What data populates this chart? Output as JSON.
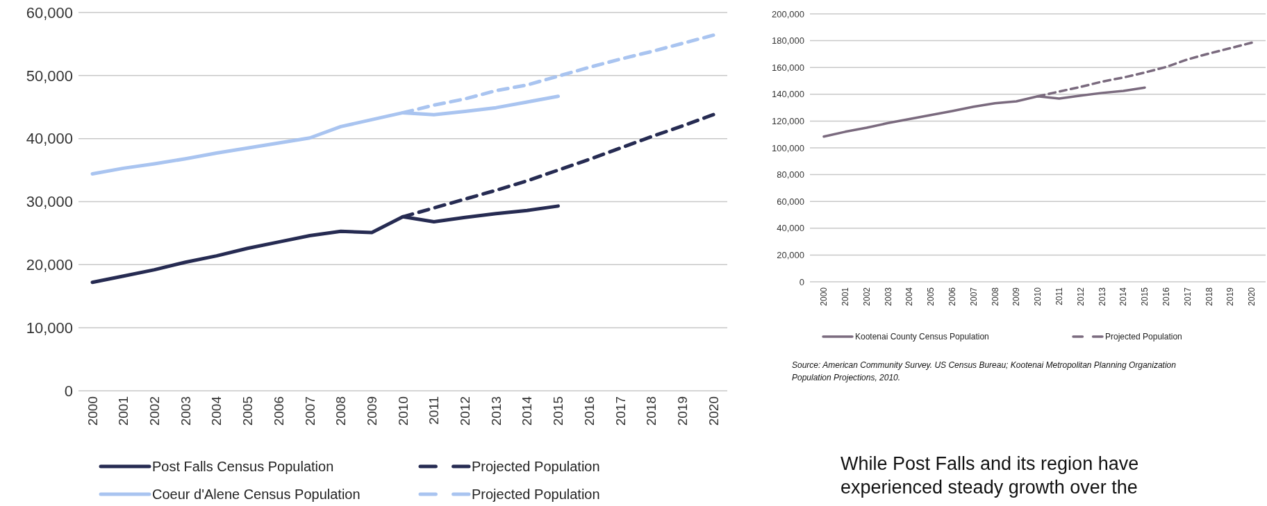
{
  "chart_data": [
    {
      "type": "line",
      "categories": [
        "2000",
        "2001",
        "2002",
        "2003",
        "2004",
        "2005",
        "2006",
        "2007",
        "2008",
        "2009",
        "2010",
        "2011",
        "2012",
        "2013",
        "2014",
        "2015",
        "2016",
        "2017",
        "2018",
        "2019",
        "2020"
      ],
      "ylim": [
        0,
        60000
      ],
      "yticks": [
        {
          "value": 0,
          "label": "0"
        },
        {
          "value": 10000,
          "label": "10,000"
        },
        {
          "value": 20000,
          "label": "20,000"
        },
        {
          "value": 30000,
          "label": "30,000"
        },
        {
          "value": 40000,
          "label": "40,000"
        },
        {
          "value": 50000,
          "label": "50,000"
        },
        {
          "value": 60000,
          "label": "60,000"
        }
      ],
      "grid": "y",
      "legend": "bottom",
      "marker": "none",
      "series": [
        {
          "name": "Post Falls Census Population",
          "color": "#262b52",
          "line_style": "solid",
          "values": [
            17200,
            18200,
            19200,
            20400,
            21400,
            22600,
            23600,
            24600,
            25300,
            25100,
            27600,
            26800,
            27500,
            28100,
            28600,
            29300,
            null,
            null,
            null,
            null,
            null
          ]
        },
        {
          "name": "Projected Population",
          "color": "#262b52",
          "line_style": "dashed",
          "values": [
            null,
            null,
            null,
            null,
            null,
            null,
            null,
            null,
            null,
            null,
            27600,
            29000,
            30400,
            31800,
            33300,
            35000,
            36700,
            38500,
            40300,
            42000,
            43800
          ]
        },
        {
          "name": "Coeur d'Alene Census Population",
          "color": "#a9c4f0",
          "line_style": "solid",
          "values": [
            34400,
            35300,
            36000,
            36800,
            37700,
            38500,
            39300,
            40100,
            41900,
            43000,
            44100,
            43800,
            44300,
            44900,
            45800,
            46700,
            null,
            null,
            null,
            null,
            null
          ]
        },
        {
          "name": "Projected Population",
          "color": "#a9c4f0",
          "line_style": "dashed",
          "values": [
            null,
            null,
            null,
            null,
            null,
            null,
            null,
            null,
            null,
            null,
            44100,
            45300,
            46300,
            47600,
            48500,
            49900,
            51300,
            52600,
            53800,
            55100,
            56400
          ]
        }
      ]
    },
    {
      "type": "line",
      "categories": [
        "2000",
        "2001",
        "2002",
        "2003",
        "2004",
        "2005",
        "2006",
        "2007",
        "2008",
        "2009",
        "2010",
        "2011",
        "2012",
        "2013",
        "2014",
        "2015",
        "2016",
        "2017",
        "2018",
        "2019",
        "2020"
      ],
      "ylim": [
        0,
        200000
      ],
      "yticks": [
        {
          "value": 0,
          "label": "0"
        },
        {
          "value": 20000,
          "label": "20,000"
        },
        {
          "value": 40000,
          "label": "40,000"
        },
        {
          "value": 60000,
          "label": "60,000"
        },
        {
          "value": 80000,
          "label": "80,000"
        },
        {
          "value": 100000,
          "label": "100,000"
        },
        {
          "value": 120000,
          "label": "120,000"
        },
        {
          "value": 140000,
          "label": "140,000"
        },
        {
          "value": 160000,
          "label": "160,000"
        },
        {
          "value": 180000,
          "label": "180,000"
        },
        {
          "value": 200000,
          "label": "200,000"
        }
      ],
      "grid": "y",
      "legend": "bottom",
      "marker": "none",
      "series": [
        {
          "name": "Kootenai County Census Population",
          "color": "#7a6a7e",
          "line_style": "solid",
          "values": [
            108400,
            112000,
            115000,
            118500,
            121500,
            124500,
            127500,
            130700,
            133300,
            134700,
            138500,
            136800,
            139000,
            141000,
            142500,
            145000,
            null,
            null,
            null,
            null,
            null
          ]
        },
        {
          "name": "Projected Population",
          "color": "#7a6a7e",
          "line_style": "dashed",
          "values": [
            null,
            null,
            null,
            null,
            null,
            null,
            null,
            null,
            null,
            null,
            138500,
            142000,
            145500,
            149400,
            152500,
            156200,
            160400,
            166000,
            170400,
            174400,
            178500
          ]
        }
      ],
      "annotations": [
        "Source: American Community Survey. US Census Bureau; Kootenai Metropolitan Planning Organization Population Projections, 2010.",
        "While Post Falls and its region have experienced steady growth over the"
      ]
    }
  ]
}
